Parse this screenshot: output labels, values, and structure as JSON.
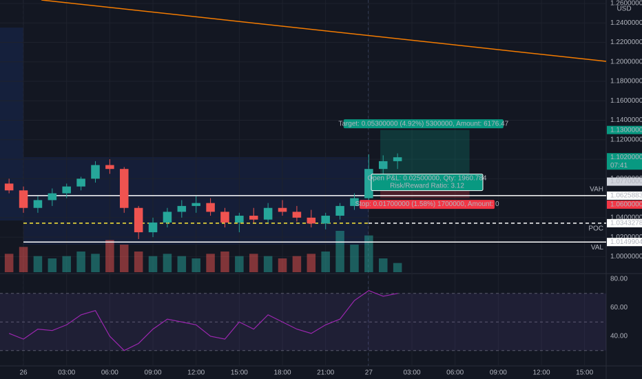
{
  "chart_data": {
    "type": "candlestick",
    "currency": "USD",
    "x": [
      -1,
      0,
      1,
      2,
      3,
      4,
      5,
      6,
      7,
      8,
      9,
      10,
      11,
      12,
      13,
      14,
      15,
      16,
      17,
      18,
      19,
      20,
      21,
      22,
      23,
      24,
      25,
      26
    ],
    "open": [
      1.075,
      1.068,
      1.05,
      1.058,
      1.065,
      1.072,
      1.08,
      1.094,
      1.09,
      1.05,
      1.025,
      1.035,
      1.046,
      1.052,
      1.055,
      1.046,
      1.035,
      1.042,
      1.038,
      1.05,
      1.046,
      1.04,
      1.034,
      1.042,
      1.052,
      1.06,
      1.09,
      1.098
    ],
    "high": [
      1.08,
      1.072,
      1.062,
      1.07,
      1.075,
      1.082,
      1.098,
      1.1,
      1.092,
      1.052,
      1.04,
      1.05,
      1.058,
      1.062,
      1.06,
      1.05,
      1.045,
      1.05,
      1.055,
      1.058,
      1.052,
      1.048,
      1.045,
      1.055,
      1.065,
      1.105,
      1.104,
      1.106
    ],
    "low": [
      1.065,
      1.045,
      1.045,
      1.052,
      1.06,
      1.068,
      1.076,
      1.085,
      1.045,
      1.018,
      1.02,
      1.03,
      1.04,
      1.045,
      1.042,
      1.03,
      1.025,
      1.035,
      1.035,
      1.042,
      1.036,
      1.03,
      1.028,
      1.038,
      1.048,
      1.058,
      1.075,
      1.09
    ],
    "close": [
      1.068,
      1.05,
      1.058,
      1.065,
      1.072,
      1.08,
      1.094,
      1.09,
      1.05,
      1.025,
      1.035,
      1.046,
      1.052,
      1.055,
      1.046,
      1.035,
      1.042,
      1.038,
      1.05,
      1.046,
      1.04,
      1.034,
      1.042,
      1.052,
      1.06,
      1.09,
      1.098,
      1.102
    ],
    "volume": [
      40,
      55,
      35,
      30,
      35,
      45,
      40,
      70,
      60,
      45,
      35,
      40,
      35,
      30,
      40,
      45,
      35,
      40,
      35,
      30,
      35,
      40,
      45,
      90,
      60,
      80,
      30,
      20
    ],
    "up_color": "#26a69a",
    "down_color": "#ef5350",
    "xlim": [
      -1.63,
      40.5
    ],
    "xticks": [
      {
        "value": 0,
        "label": "26"
      },
      {
        "value": 3,
        "label": "03:00"
      },
      {
        "value": 6,
        "label": "06:00"
      },
      {
        "value": 9,
        "label": "09:00"
      },
      {
        "value": 12,
        "label": "12:00"
      },
      {
        "value": 15,
        "label": "15:00"
      },
      {
        "value": 18,
        "label": "18:00"
      },
      {
        "value": 21,
        "label": "21:00"
      },
      {
        "value": 24,
        "label": "27"
      },
      {
        "value": 27,
        "label": "03:00"
      },
      {
        "value": 30,
        "label": "06:00"
      },
      {
        "value": 33,
        "label": "09:00"
      },
      {
        "value": 36,
        "label": "12:00"
      },
      {
        "value": 39,
        "label": "15:00"
      }
    ],
    "ylim": [
      0.984,
      1.2635
    ],
    "yticks": [
      {
        "value": 1.0,
        "label": "1.00000000"
      },
      {
        "value": 1.02,
        "label": "1.02000000"
      },
      {
        "value": 1.04,
        "label": "1.04000000"
      },
      {
        "value": 1.06,
        "label": "1.06000000"
      },
      {
        "value": 1.08,
        "label": "1.08000000"
      },
      {
        "value": 1.1,
        "label": "1.10000000"
      },
      {
        "value": 1.12,
        "label": "1.12000000"
      },
      {
        "value": 1.14,
        "label": "1.14000000"
      },
      {
        "value": 1.16,
        "label": "1.16000000"
      },
      {
        "value": 1.18,
        "label": "1.18000000"
      },
      {
        "value": 1.2,
        "label": "1.20000000"
      },
      {
        "value": 1.22,
        "label": "1.22000000"
      },
      {
        "value": 1.24,
        "label": "1.24000000"
      },
      {
        "value": 1.26,
        "label": "1.26000000"
      }
    ],
    "grid": true,
    "trendline": {
      "x": [
        1.25,
        40.5
      ],
      "values": [
        1.2635,
        1.2005
      ],
      "color": "#f57c00"
    },
    "levels": [
      {
        "name": "VAH",
        "value": 1.06258839,
        "label": "1.06258839"
      },
      {
        "name": "POC",
        "value": 1.03432786,
        "label": "1.03432786"
      },
      {
        "name": "VAL",
        "value": 1.01499043,
        "label": "1.01499043"
      }
    ],
    "price_tags": [
      {
        "value": 1.13,
        "label": "1.13000000",
        "color": "#089981"
      },
      {
        "value": 1.102,
        "label": "1.10200000",
        "color": "#089981",
        "countdown": "07:41"
      },
      {
        "value": 1.077,
        "label": "1.07700000",
        "color": "#d1d4dc"
      },
      {
        "value": 1.06,
        "label": "1.06000000",
        "color": "#f23645"
      }
    ],
    "position": {
      "x": [
        24.8,
        31
      ],
      "target": 1.13,
      "entry": 1.077,
      "stop": 1.06,
      "target_text": "Target: 0.05300000 (4.92%) 5300000, Amount: 6176.47",
      "pnl_text": "Open P&L: 0.02500000, Qty: 1960.784",
      "rr_text": "Risk/Reward Ratio: 3.12",
      "stop_text": "Stop: 0.01700000 (1.58%) 1700000, Amount: 0"
    },
    "rsi": {
      "values": [
        42,
        38,
        45,
        44,
        48,
        55,
        58,
        40,
        30,
        35,
        45,
        52,
        50,
        48,
        40,
        38,
        50,
        45,
        55,
        50,
        45,
        42,
        48,
        52,
        65,
        72,
        68,
        70
      ],
      "color": "#9c27b0",
      "ylim": [
        20.7,
        83.4
      ],
      "yticks": [
        {
          "value": 80,
          "label": "80.00"
        },
        {
          "value": 60,
          "label": "60.00"
        },
        {
          "value": 40,
          "label": "40.00"
        }
      ],
      "bands": [
        70,
        50,
        30
      ]
    }
  }
}
